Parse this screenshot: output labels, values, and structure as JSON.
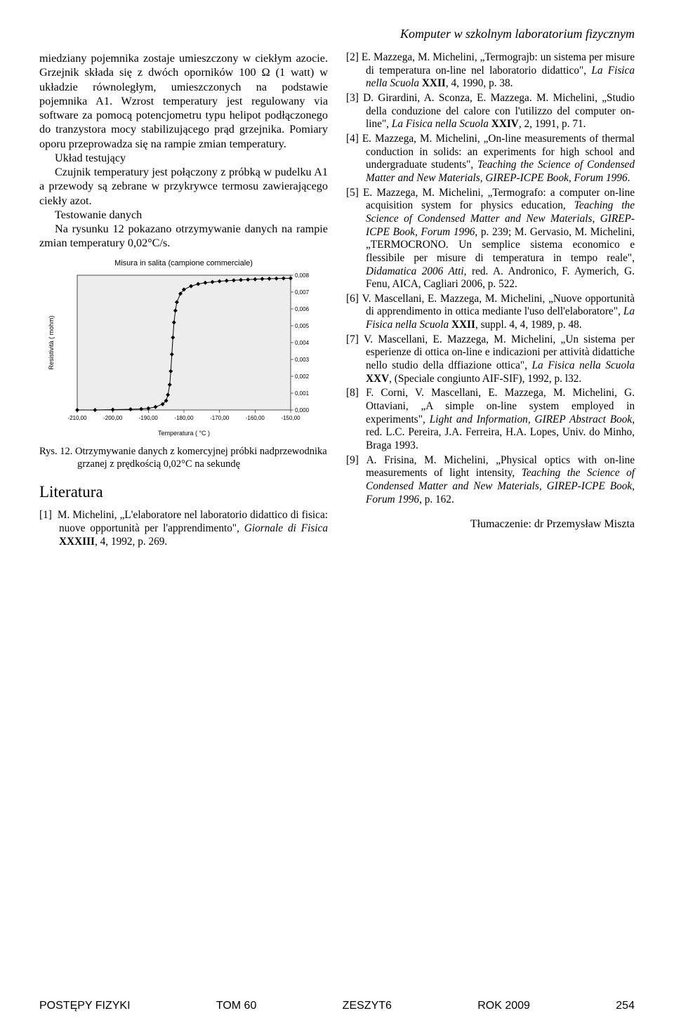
{
  "running_head": "Komputer w szkolnym laboratorium fizycznym",
  "left_column": {
    "p1": "miedziany pojemnika zostaje umieszczony w ciekłym azocie. Grzejnik składa się z dwóch oporników 100 Ω (1 watt) w układzie równoległym, umieszczonych na podstawie pojemnika A1. Wzrost temperatury jest regulowany via software za pomocą potencjometru typu helipot podłączonego do tranzystora mocy stabilizującego prąd grzejnika. Pomiary oporu przeprowadza się na rampie zmian temperatury.",
    "p2_head": "Układ testujący",
    "p2": "Czujnik temperatury jest połączony z próbką w pudelku A1 a przewody są zebrane w przykrywce termosu zawierającego ciekły azot.",
    "p3_head": "Testowanie danych",
    "p3": "Na rysunku 12 pokazano otrzymywanie danych na rampie zmian temperatury 0,02°C/s.",
    "fig_caption": "Rys. 12. Otrzymywanie danych z komercyjnej próbki nadprzewodnika grzanej z prędkością 0,02°C na sekundę",
    "lit_heading": "Literatura",
    "ref1_a": "M. Michelini, „L'elaboratore nel laboratorio didattico di fisica: nuove opportunità per l'apprendimento\", ",
    "ref1_it": "Giornale di Fisica",
    "ref1_b": " ",
    "ref1_bold": "XXXIII",
    "ref1_c": ", 4, 1992, p. 269."
  },
  "chart": {
    "type": "line",
    "title": "Misura in salita (campione commerciale)",
    "xlabel": "Temperatura ( °C )",
    "ylabel": "Resistività ( mohm)",
    "xlim": [
      -210,
      -150
    ],
    "ylim": [
      0,
      0.008
    ],
    "xticks": [
      -210,
      -200,
      -190,
      -180,
      -170,
      -160,
      -150
    ],
    "xtick_labels": [
      "-210,00",
      "-200,00",
      "-190,00",
      "-180,00",
      "-170,00",
      "-160,00",
      "-150,00"
    ],
    "yticks": [
      0,
      0.001,
      0.002,
      0.003,
      0.004,
      0.005,
      0.006,
      0.007,
      0.008
    ],
    "ytick_labels": [
      "0,000",
      "0,001",
      "0,002",
      "0,003",
      "0,004",
      "0,005",
      "0,006",
      "0,007",
      "0,008"
    ],
    "series_color": "#000000",
    "background_color": "#ffffff",
    "plot_fill": "#ededed",
    "axis_color": "#000000",
    "marker": "diamond",
    "marker_size": 3,
    "label_fontsize": 9,
    "tick_fontsize": 8,
    "series": [
      {
        "x": -210.0,
        "y": 0.0
      },
      {
        "x": -205.0,
        "y": 0.0
      },
      {
        "x": -200.0,
        "y": 2e-05
      },
      {
        "x": -195.0,
        "y": 4e-05
      },
      {
        "x": -192.0,
        "y": 6e-05
      },
      {
        "x": -190.0,
        "y": 0.0001
      },
      {
        "x": -188.0,
        "y": 0.00018
      },
      {
        "x": -186.0,
        "y": 0.00035
      },
      {
        "x": -185.0,
        "y": 0.00055
      },
      {
        "x": -184.5,
        "y": 0.0009
      },
      {
        "x": -184.0,
        "y": 0.0015
      },
      {
        "x": -183.7,
        "y": 0.0023
      },
      {
        "x": -183.4,
        "y": 0.0033
      },
      {
        "x": -183.1,
        "y": 0.0043
      },
      {
        "x": -182.8,
        "y": 0.0052
      },
      {
        "x": -182.4,
        "y": 0.0059
      },
      {
        "x": -182.0,
        "y": 0.0064
      },
      {
        "x": -181.0,
        "y": 0.0069
      },
      {
        "x": -180.0,
        "y": 0.00715
      },
      {
        "x": -178.0,
        "y": 0.00735
      },
      {
        "x": -176.0,
        "y": 0.00748
      },
      {
        "x": -174.0,
        "y": 0.00755
      },
      {
        "x": -172.0,
        "y": 0.0076
      },
      {
        "x": -170.0,
        "y": 0.00764
      },
      {
        "x": -168.0,
        "y": 0.00767
      },
      {
        "x": -166.0,
        "y": 0.0077
      },
      {
        "x": -164.0,
        "y": 0.00772
      },
      {
        "x": -162.0,
        "y": 0.00774
      },
      {
        "x": -160.0,
        "y": 0.00776
      },
      {
        "x": -158.0,
        "y": 0.00778
      },
      {
        "x": -156.0,
        "y": 0.00779
      },
      {
        "x": -154.0,
        "y": 0.0078
      },
      {
        "x": -152.0,
        "y": 0.00781
      },
      {
        "x": -150.0,
        "y": 0.00782
      }
    ]
  },
  "right_column": {
    "refs": [
      {
        "pre": "E. Mazzega, M. Michelini, „Termograjb: un sistema per misure di temperatura on-line nel laboratorio didattico\", ",
        "it": "La Fisica nella Scuola",
        "mid": " ",
        "bold": "XXII",
        "post": ", 4, 1990, p. 38."
      },
      {
        "pre": "D. Girardini, A. Sconza, E. Mazzega. M. Michelini, „Studio della conduzione del calore con l'utilizzo del computer on-line\", ",
        "it": "La Fisica nella Scuola",
        "mid": " ",
        "bold": "XXIV",
        "post": ", 2, 1991, p. 71."
      },
      {
        "pre": "E. Mazzega, M. Michelini, „On-line measurements of thermal conduction in solids: an experiments for high school and undergraduate students\", ",
        "it": "Teaching the Science of Condensed Matter and New Materials, GIREP-ICPE Book, Forum 1996",
        "mid": "",
        "bold": "",
        "post": "."
      },
      {
        "pre": "E. Mazzega, M. Michelini, „Termografo: a computer on-line acquisition system for physics education, ",
        "it": "Teaching the Science of Condensed Matter and New Materials, GIREP-ICPE Book, Forum 1996",
        "mid": ", p. 239; M. Gervasio, M. Michelini, „TERMOCRONO. Un semplice sistema economico e flessibile per misure di temperatura in tempo reale\", ",
        "bold": "",
        "post": "",
        "it2": "Didamatica 2006 Atti",
        "post2": ", red. A. Andronico, F. Aymerich, G. Fenu, AICA, Cagliari 2006, p. 522."
      },
      {
        "pre": "V. Mascellani, E. Mazzega, M. Michelini, „Nuove opportunità di apprendimento in ottica mediante l'uso dell'elaboratore\", ",
        "it": "La Fisica nella Scuola",
        "mid": " ",
        "bold": "XXII",
        "post": ", suppl. 4, 4, 1989, p. 48."
      },
      {
        "pre": "V. Mascellani, E. Mazzega, M. Michelini, „Un sistema per esperienze di ottica on-line e indicazioni per attività didattiche nello studio della dffiazione ottica\", ",
        "it": "La Fisica nella Scuola",
        "mid": " ",
        "bold": "XXV",
        "post": ", (Speciale congiunto AIF-SIF), 1992, p. l32."
      },
      {
        "pre": "F. Corni, V. Mascellani, E. Mazzega, M. Michelini, G. Ottaviani, „A simple on-line system employed in experiments\", ",
        "it": "Light and Information, GIREP Abstract Book",
        "mid": ", red. L.C. Pereira, J.A. Ferreira, H.A. Lopes, Univ. do Minho, Braga 1993.",
        "bold": "",
        "post": ""
      },
      {
        "pre": "A. Frisina, M. Michelini, „Physical optics with on-line measurements of light intensity, ",
        "it": "Teaching the Science of Condensed Matter and New Materials, GIREP-ICPE Book, Forum 1996",
        "mid": ", p. 162.",
        "bold": "",
        "post": ""
      }
    ],
    "translator": "Tłumaczenie: dr Przemysław Miszta"
  },
  "footer": {
    "left": "POSTĘPY FIZYKI",
    "c1": "TOM 60",
    "c2": "ZESZYT6",
    "c3": "ROK 2009",
    "page": "254"
  }
}
